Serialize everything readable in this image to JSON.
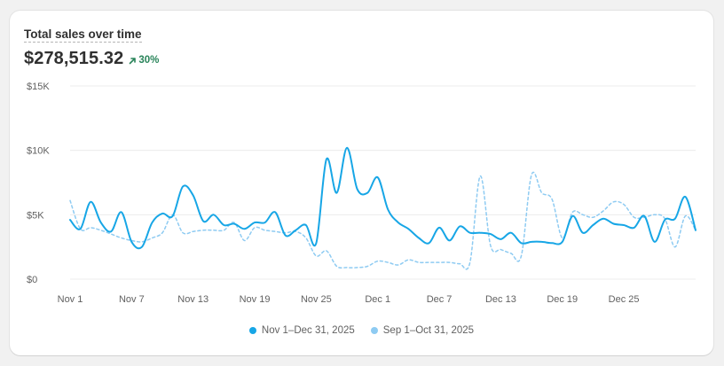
{
  "card": {
    "title": "Total sales over time",
    "value": "$278,515.32",
    "delta": "30%",
    "delta_icon": "arrow-up-right-icon",
    "delta_color": "#29845a"
  },
  "colors": {
    "primary": "#17a6e6",
    "comparison": "#8ecbf2",
    "grid": "#ececec"
  },
  "chart_data": {
    "type": "line",
    "title": "Total sales over time",
    "xlabel": "",
    "ylabel": "",
    "ylim": [
      0,
      15000
    ],
    "y_ticks": [
      0,
      5000,
      10000,
      15000
    ],
    "y_tick_labels": [
      "$0",
      "$5K",
      "$10K",
      "$15K"
    ],
    "x_ticks": [
      "Nov 1",
      "Nov 7",
      "Nov 13",
      "Nov 19",
      "Nov 25",
      "Dec 1",
      "Dec 7",
      "Dec 13",
      "Dec 19",
      "Dec 25"
    ],
    "x_tick_day_index": [
      0,
      6,
      12,
      18,
      24,
      30,
      36,
      42,
      48,
      54
    ],
    "grid": "horizontal",
    "legend_position": "bottom",
    "series": [
      {
        "name": "Nov 1–Dec 31, 2025",
        "style": "solid",
        "values": [
          4600,
          3900,
          6000,
          4400,
          3700,
          5200,
          2900,
          2500,
          4400,
          5100,
          4900,
          7200,
          6500,
          4500,
          5000,
          4200,
          4300,
          3900,
          4400,
          4400,
          5200,
          3400,
          3800,
          4200,
          2800,
          9300,
          6700,
          10200,
          7000,
          6700,
          7900,
          5400,
          4400,
          3900,
          3200,
          2800,
          4000,
          3000,
          4100,
          3600,
          3600,
          3500,
          3100,
          3600,
          2800,
          2900,
          2900,
          2800,
          2900,
          4900,
          3600,
          4200,
          4700,
          4300,
          4200,
          4000,
          4900,
          2900,
          4600,
          4700,
          6400,
          3800
        ]
      },
      {
        "name": "Sep 1–Oct 31, 2025",
        "style": "dashed",
        "values": [
          6100,
          3900,
          4000,
          3800,
          3500,
          3200,
          3000,
          2900,
          3200,
          3600,
          5000,
          3600,
          3700,
          3800,
          3800,
          3800,
          4400,
          3000,
          4000,
          3800,
          3700,
          3600,
          3700,
          3200,
          1800,
          2200,
          1000,
          900,
          900,
          1000,
          1400,
          1300,
          1100,
          1500,
          1300,
          1300,
          1300,
          1300,
          1200,
          1300,
          8000,
          2600,
          2300,
          2000,
          1800,
          8100,
          6700,
          6200,
          3200,
          5200,
          5000,
          4800,
          5300,
          6000,
          5800,
          4800,
          4800,
          5000,
          4700,
          2500,
          4900,
          3800
        ]
      }
    ]
  }
}
